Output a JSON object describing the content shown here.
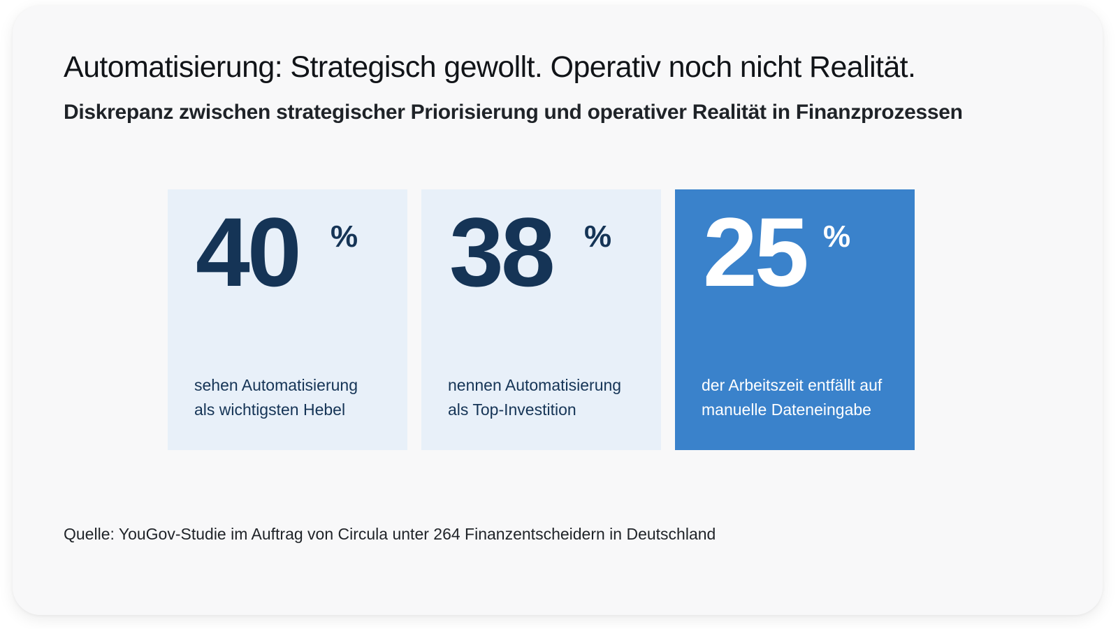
{
  "title": "Automatisierung: Strategisch gewollt. Operativ noch nicht Realität.",
  "subtitle": "Diskrepanz zwischen strategischer Priorisierung und operativer Realität in Finanzprozessen",
  "stats": [
    {
      "value": "40",
      "unit": "%",
      "line1": "sehen Automatisierung",
      "line2": "als wichtigsten Hebel"
    },
    {
      "value": "38",
      "unit": "%",
      "line1": "nennen Automatisierung",
      "line2": "als Top-Investition"
    },
    {
      "value": "25",
      "unit": "%",
      "line1": "der Arbeitszeit entfällt auf",
      "line2": "manuelle Dateneingabe"
    }
  ],
  "colors": {
    "card_background": "#f8f8f9",
    "stat_background": "#e8f0f9",
    "stat_highlight_background": "#3a82cb",
    "stat_text": "#153456"
  },
  "source": "Quelle: YouGov-Studie im Auftrag von Circula unter 264 Finanzentscheidern in Deutschland"
}
